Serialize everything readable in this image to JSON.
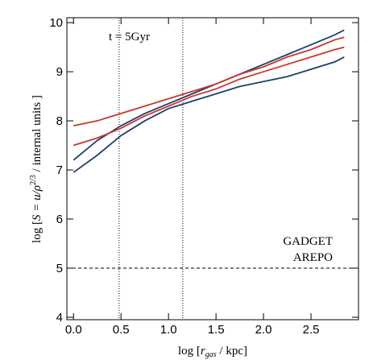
{
  "chart_data": {
    "type": "line",
    "annotation": "t = 5Gyr",
    "xlabel_parts": [
      "log [",
      "r",
      "gas",
      " / kpc]"
    ],
    "ylabel_parts": [
      "log [",
      "S = u/ρ",
      "2/3",
      " / internal units ]"
    ],
    "x": [
      0,
      0.25,
      0.5,
      0.75,
      1.0,
      1.25,
      1.5,
      1.75,
      2.0,
      2.25,
      2.5,
      2.75,
      2.85
    ],
    "series": [
      {
        "name": "GADGET",
        "color": "#1b3f6e",
        "upper": [
          7.2,
          7.6,
          7.9,
          8.15,
          8.35,
          8.55,
          8.75,
          8.95,
          9.15,
          9.35,
          9.55,
          9.75,
          9.85
        ],
        "lower": [
          6.95,
          7.3,
          7.7,
          8.0,
          8.25,
          8.4,
          8.55,
          8.7,
          8.8,
          8.9,
          9.05,
          9.2,
          9.3
        ]
      },
      {
        "name": "AREPO",
        "color": "#c8372d",
        "upper": [
          7.9,
          8.0,
          8.15,
          8.3,
          8.45,
          8.6,
          8.75,
          8.95,
          9.1,
          9.3,
          9.45,
          9.65,
          9.7
        ],
        "lower": [
          7.5,
          7.65,
          7.85,
          8.1,
          8.3,
          8.5,
          8.65,
          8.85,
          9.0,
          9.15,
          9.3,
          9.45,
          9.5
        ]
      }
    ],
    "hlines": [
      5
    ],
    "vlines": [
      0.48,
      1.15
    ],
    "xlim": [
      -0.07,
      3.0
    ],
    "ylim": [
      3.95,
      10.1
    ],
    "xticks": [
      {
        "value": 0,
        "label": "0.0"
      },
      0.5,
      {
        "value": 1,
        "label": "1.0"
      },
      1.5,
      {
        "value": 2,
        "label": "2.0"
      },
      2.5
    ],
    "yticks": [
      4,
      5,
      6,
      7,
      8,
      9,
      10
    ],
    "grid": false,
    "legend": "right"
  }
}
